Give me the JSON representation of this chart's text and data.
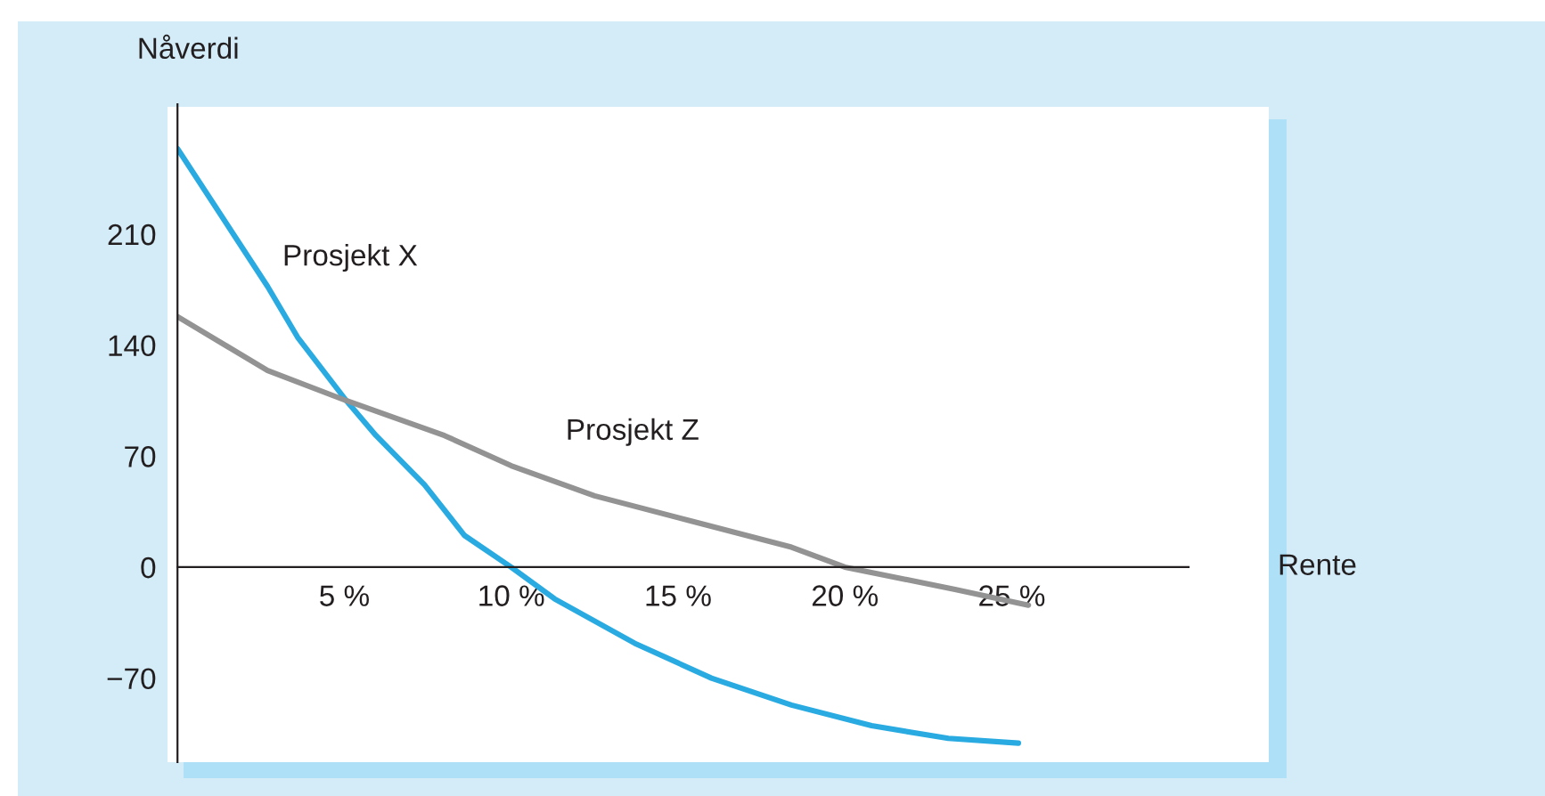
{
  "chart_data": {
    "type": "line",
    "xlabel": "Rente",
    "ylabel": "Nåverdi",
    "xlim": [
      0,
      30.3
    ],
    "ylim": [
      -123,
      292
    ],
    "xticks": [
      {
        "value": 5,
        "label": "5 %"
      },
      {
        "value": 10,
        "label": "10 %"
      },
      {
        "value": 15,
        "label": "15 %"
      },
      {
        "value": 20,
        "label": "20 %"
      },
      {
        "value": 25,
        "label": "25 %"
      }
    ],
    "yticks": [
      {
        "value": -70,
        "label": "−70"
      },
      0,
      70,
      140,
      210
    ],
    "grid": false,
    "legend": false,
    "marker": "none",
    "line_style": "solid",
    "series": [
      {
        "name": "Prosjekt X",
        "color": "#29abe2",
        "x": [
          0,
          2.7,
          3.6,
          5.06,
          5.95,
          7.4,
          8.6,
          10,
          11.3,
          13.7,
          16,
          18.4,
          20.8,
          23.1,
          25.2
        ],
        "values": [
          264,
          177,
          145,
          105,
          83,
          52,
          20,
          0,
          -20,
          -48,
          -70,
          -87,
          -100,
          -108,
          -111
        ]
      },
      {
        "name": "Prosjekt Z",
        "color": "#939393",
        "x": [
          0,
          2.7,
          5.06,
          8,
          10,
          12.5,
          15.4,
          18.4,
          20,
          23.3,
          25.5
        ],
        "values": [
          158,
          124,
          105,
          83,
          64,
          45,
          29,
          12.6,
          0,
          -14,
          -24
        ]
      }
    ]
  }
}
